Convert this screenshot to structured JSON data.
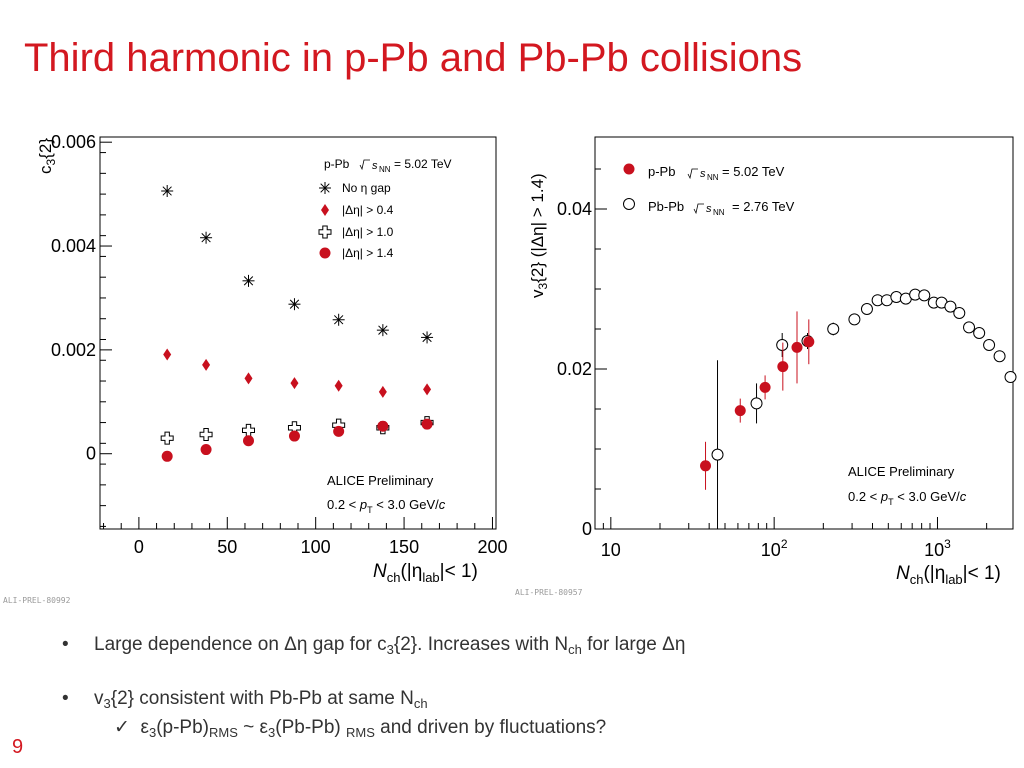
{
  "title": "Third harmonic in p-Pb and Pb-Pb collisions",
  "colors": {
    "title": "#d31820",
    "ppb": "#c8101e",
    "bullet_text": "#333333"
  },
  "left_tag": "ALI-PREL-80992",
  "right_tag": "ALI-PREL-80957",
  "page_number": "9",
  "bullets": {
    "b1_prefix": "Large dependence on Δη gap for c",
    "b1_sub1": "3",
    "b1_mid": "{2}. Increases with N",
    "b1_sub2": "ch",
    "b1_suffix": " for large Δη",
    "b2_prefix": "v",
    "b2_sub1": "3",
    "b2_mid": "{2} consistent with Pb-Pb at same N",
    "b2_sub2": "ch",
    "b3_check": "✓",
    "b3_a": "ε",
    "b3_sub1": "3",
    "b3_b": "(p-Pb)",
    "b3_sub2": "RMS",
    "b3_c": " ~ ε",
    "b3_sub3": "3",
    "b3_d": "(Pb-Pb) ",
    "b3_sub4": "RMS",
    "b3_e": " and driven by fluctuations?"
  },
  "chart_data": [
    {
      "type": "scatter",
      "ylabel_main": "c",
      "ylabel_sub": "3",
      "ylabel_rest": "{2}",
      "xlabel_main": "N",
      "xlabel_sub": "ch",
      "xlabel_mid": "(|η",
      "xlabel_sub2": "lab",
      "xlabel_end": "|< 1)",
      "xlim": [
        -22,
        202
      ],
      "ylim": [
        -0.00145,
        0.0061
      ],
      "x_ticks": [
        0,
        50,
        100,
        150,
        200
      ],
      "x_tick_labels": [
        "0",
        "50",
        "100",
        "150",
        "200"
      ],
      "y_ticks": [
        0,
        0.002,
        0.004,
        0.006
      ],
      "y_tick_labels": [
        "0",
        "0.002",
        "0.004",
        "0.006"
      ],
      "legend_header": "p-Pb",
      "legend_energy": "= 5.02 TeV",
      "annotation_1": "ALICE Preliminary",
      "annotation_2_a": "0.2 <",
      "annotation_2_b": "< 3.0 GeV/",
      "series": [
        {
          "name": "No η gap",
          "marker": "asterisk",
          "x": [
            16,
            38,
            62,
            88,
            113,
            138,
            163
          ],
          "y": [
            0.00506,
            0.00416,
            0.00333,
            0.00288,
            0.00258,
            0.00238,
            0.00224
          ]
        },
        {
          "name": "|Δη| > 0.4",
          "marker": "diamond",
          "x": [
            16,
            38,
            62,
            88,
            113,
            138,
            163
          ],
          "y": [
            0.00191,
            0.00171,
            0.00145,
            0.00136,
            0.00131,
            0.00119,
            0.00124
          ]
        },
        {
          "name": "|Δη| > 1.0",
          "marker": "cross",
          "x": [
            16,
            38,
            62,
            88,
            113,
            138,
            163
          ],
          "y": [
            0.0003,
            0.00037,
            0.00045,
            0.0005,
            0.00055,
            0.0005,
            0.0006
          ]
        },
        {
          "name": "|Δη| > 1.4",
          "marker": "circle",
          "x": [
            16,
            38,
            62,
            88,
            113,
            138,
            163
          ],
          "y": [
            -5e-05,
            8e-05,
            0.00025,
            0.00034,
            0.00043,
            0.00053,
            0.00057
          ]
        }
      ]
    },
    {
      "type": "scatter",
      "ylabel_main": "v",
      "ylabel_sub": "3",
      "ylabel_rest": "{2} (|Δη| > 1.4)",
      "xlabel_main": "N",
      "xlabel_sub": "ch",
      "xlabel_mid": "(|η",
      "xlabel_sub2": "lab",
      "xlabel_end": "|< 1)",
      "x_scale": "log",
      "xlim": [
        8,
        2900
      ],
      "ylim": [
        0,
        0.049
      ],
      "x_ticks": [
        10,
        100,
        1000
      ],
      "x_tick_labels": [
        "10",
        "10",
        "10"
      ],
      "x_tick_exp": [
        "",
        "2",
        "3"
      ],
      "y_ticks": [
        0,
        0.02,
        0.04
      ],
      "y_tick_labels": [
        "0",
        "0.02",
        "0.04"
      ],
      "legend_ppb": "p-Pb",
      "legend_ppb_energy": "= 5.02 TeV",
      "legend_pbpb": "Pb-Pb",
      "legend_pbpb_energy": "= 2.76 TeV",
      "annotation_1": "ALICE Preliminary",
      "annotation_2_a": "0.2 <",
      "annotation_2_b": "< 3.0 GeV/",
      "series": [
        {
          "name": "p-Pb",
          "marker": "filled",
          "x": [
            38,
            62,
            88,
            113,
            138,
            163
          ],
          "y": [
            0.0079,
            0.0148,
            0.0177,
            0.0203,
            0.0227,
            0.0234
          ],
          "err": [
            0.003,
            0.0015,
            0.0015,
            0.003,
            0.0045,
            0.0028
          ]
        },
        {
          "name": "Pb-Pb",
          "marker": "open",
          "x": [
            45,
            78,
            112,
            160,
            230,
            310,
            370,
            430,
            490,
            560,
            640,
            730,
            830,
            950,
            1060,
            1200,
            1360,
            1560,
            1800,
            2070,
            2400,
            2800
          ],
          "y": [
            0.0093,
            0.0157,
            0.023,
            0.0235,
            0.025,
            0.0262,
            0.0275,
            0.0286,
            0.0286,
            0.029,
            0.0288,
            0.0293,
            0.0292,
            0.0283,
            0.0283,
            0.0278,
            0.027,
            0.0252,
            0.0245,
            0.023,
            0.0216,
            0.019
          ],
          "err": [
            0.0118,
            0.0025,
            0.0015,
            0.001,
            0.0008,
            0.0006,
            0.0005,
            0.0005,
            0.0005,
            0.0005,
            0.0005,
            0.0005,
            0.0005,
            0.0005,
            0.0005,
            0.0005,
            0.0005,
            0.0005,
            0.0005,
            0.0005,
            0.0005,
            0.0005
          ]
        }
      ]
    }
  ]
}
